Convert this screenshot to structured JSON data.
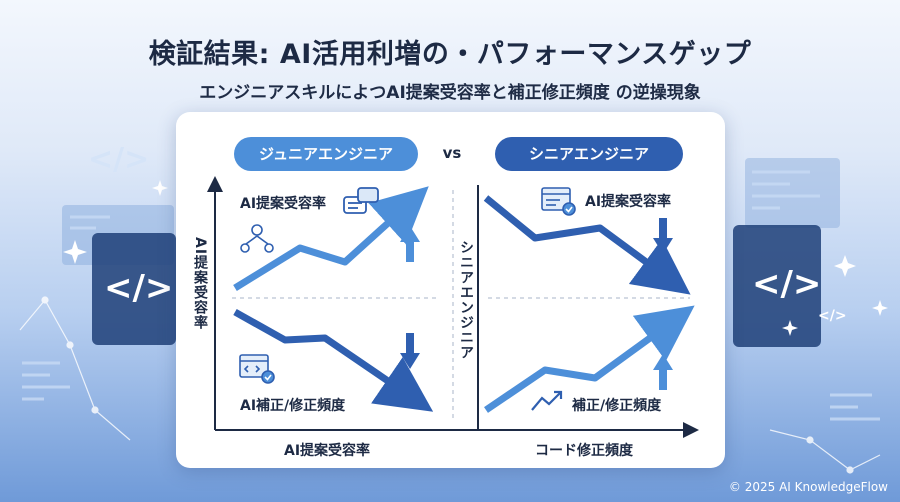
{
  "title": "検証結果: AI活用利増の・パフォーマンスゲップ",
  "subtitle": "エンジニアスキルによつAI提案受容率と補正修正頻度 の逆操現象",
  "left_panel": {
    "label": "ジュニアエンジニア",
    "top_metric": "AI提案受容率",
    "bottom_metric": "AI補正/修正頻度",
    "y_axis_label": "AI提案受容率",
    "x_axis_label": "AI提案受容率"
  },
  "vs_label": "vs",
  "right_panel": {
    "label": "シニアエンジニア",
    "top_metric": "AI提案受容率",
    "bottom_metric": "補正/修正頻度",
    "y_axis_label": "シニアエンジニア",
    "x_axis_label": "コード修正頻度"
  },
  "copyright": "© 2025 AI KnowledgeFlow",
  "colors": {
    "junior": "#4d8fd9",
    "senior": "#2f5fb0",
    "text": "#1d2a44"
  },
  "decor_glyph": "</>"
}
